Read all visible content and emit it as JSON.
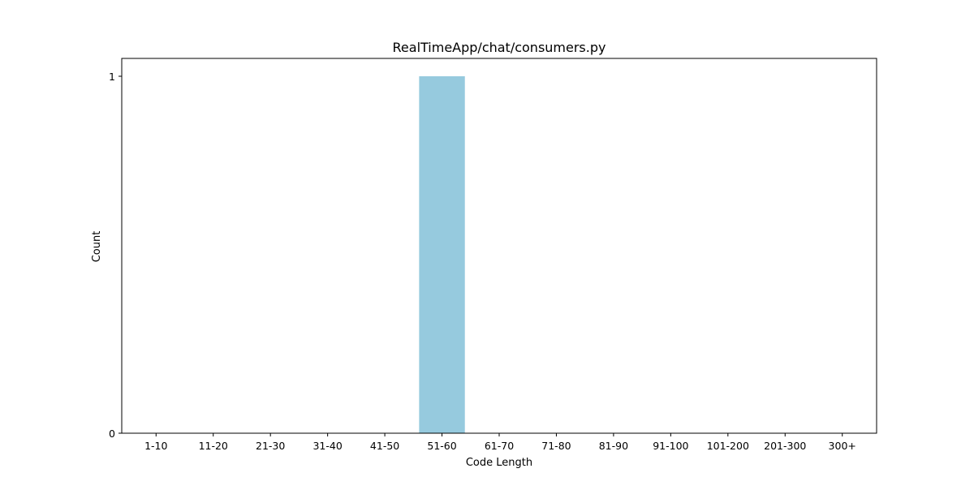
{
  "chart_data": {
    "type": "bar",
    "title": "RealTimeApp/chat/consumers.py",
    "xlabel": "Code Length",
    "ylabel": "Count",
    "categories": [
      "1-10",
      "11-20",
      "21-30",
      "31-40",
      "41-50",
      "51-60",
      "61-70",
      "71-80",
      "81-90",
      "91-100",
      "101-200",
      "201-300",
      "300+"
    ],
    "values": [
      0,
      0,
      0,
      0,
      0,
      1,
      0,
      0,
      0,
      0,
      0,
      0,
      0
    ],
    "ylim": [
      0,
      1.05
    ],
    "yticks": [
      0,
      1
    ],
    "bar_color": "#96cade",
    "grid": false,
    "legend": "none"
  }
}
